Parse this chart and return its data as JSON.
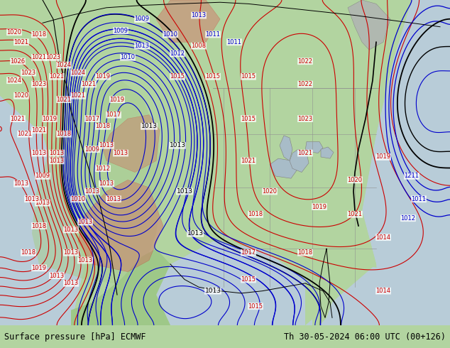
{
  "title_left": "Surface pressure [hPa] ECMWF",
  "title_right": "Th 30-05-2024 06:00 UTC (00+126)",
  "fig_width": 6.34,
  "fig_height": 4.9,
  "dpi": 100,
  "land_color": "#b2d4a0",
  "ocean_color": "#c8d8e8",
  "mountain_color": "#a0c890",
  "bar_color": "#d8d8d8",
  "font_size_title": 8.5,
  "red_contour_color": "#cc0000",
  "blue_contour_color": "#0000cc",
  "black_contour_color": "#000000",
  "gray_land_color": "#c0c8c0",
  "red_fill_color": "#e06060",
  "blue_fill_color": "#6080d0"
}
